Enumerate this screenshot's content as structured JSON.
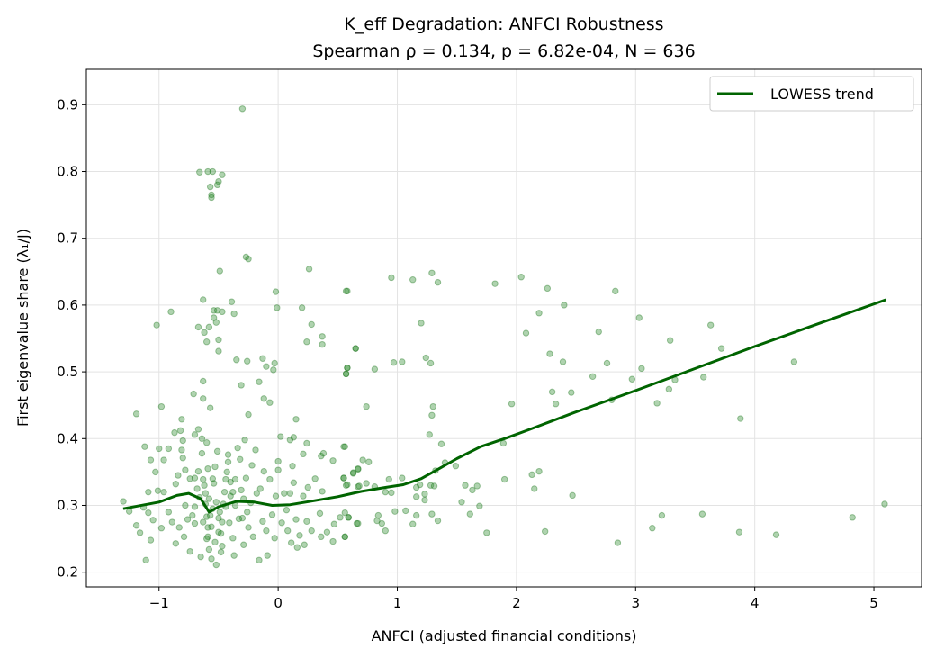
{
  "chart_data": {
    "type": "scatter",
    "title": "K_eff Degradation: ANFCI Robustness",
    "subtitle": "Spearman ρ = 0.134, p = 6.82e-04, N = 636",
    "xlabel": "ANFCI (adjusted financial conditions)",
    "ylabel": "First eigenvalue share (λ₁/J)",
    "xlim": [
      -1.61,
      5.4
    ],
    "ylim": [
      0.178,
      0.953
    ],
    "xticks": [
      -1,
      0,
      1,
      2,
      3,
      4,
      5
    ],
    "xtick_labels": [
      "−1",
      "0",
      "1",
      "2",
      "3",
      "4",
      "5"
    ],
    "yticks": [
      0.2,
      0.3,
      0.4,
      0.5,
      0.6,
      0.7,
      0.8,
      0.9
    ],
    "ytick_labels": [
      "0.2",
      "0.3",
      "0.4",
      "0.5",
      "0.6",
      "0.7",
      "0.8",
      "0.9"
    ],
    "grid": true,
    "legend_placement": "top-right",
    "colors": {
      "points": "#2e8b2e",
      "trend": "#006400"
    },
    "trend": {
      "name": "LOWESS trend",
      "points": [
        [
          -1.3,
          0.295
        ],
        [
          -1.0,
          0.305
        ],
        [
          -0.85,
          0.315
        ],
        [
          -0.75,
          0.318
        ],
        [
          -0.65,
          0.31
        ],
        [
          -0.58,
          0.29
        ],
        [
          -0.5,
          0.298
        ],
        [
          -0.35,
          0.306
        ],
        [
          -0.2,
          0.305
        ],
        [
          -0.05,
          0.3
        ],
        [
          0.1,
          0.301
        ],
        [
          0.3,
          0.307
        ],
        [
          0.5,
          0.313
        ],
        [
          0.7,
          0.321
        ],
        [
          0.9,
          0.327
        ],
        [
          1.05,
          0.331
        ],
        [
          1.2,
          0.34
        ],
        [
          1.35,
          0.355
        ],
        [
          1.5,
          0.37
        ],
        [
          1.7,
          0.388
        ],
        [
          1.9,
          0.4
        ],
        [
          2.1,
          0.413
        ],
        [
          2.5,
          0.44
        ],
        [
          3.0,
          0.472
        ],
        [
          3.5,
          0.505
        ],
        [
          4.0,
          0.538
        ],
        [
          4.5,
          0.57
        ],
        [
          5.1,
          0.608
        ]
      ]
    },
    "points": [
      [
        -0.3,
        0.894
      ],
      [
        -0.66,
        0.799
      ],
      [
        -0.59,
        0.8
      ],
      [
        -0.55,
        0.8
      ],
      [
        -0.47,
        0.795
      ],
      [
        -0.5,
        0.785
      ],
      [
        -0.51,
        0.78
      ],
      [
        -0.57,
        0.777
      ],
      [
        -0.56,
        0.765
      ],
      [
        -0.56,
        0.761
      ],
      [
        -0.27,
        0.672
      ],
      [
        -0.25,
        0.669
      ],
      [
        -0.49,
        0.651
      ],
      [
        0.26,
        0.654
      ],
      [
        -0.63,
        0.608
      ],
      [
        -0.39,
        0.605
      ],
      [
        -0.02,
        0.62
      ],
      [
        -0.01,
        0.596
      ],
      [
        0.58,
        0.621
      ],
      [
        -0.9,
        0.59
      ],
      [
        -0.54,
        0.592
      ],
      [
        -0.51,
        0.592
      ],
      [
        -0.47,
        0.59
      ],
      [
        -0.37,
        0.587
      ],
      [
        0.2,
        0.596
      ],
      [
        -1.02,
        0.57
      ],
      [
        -0.54,
        0.581
      ],
      [
        -0.58,
        0.567
      ],
      [
        -0.52,
        0.574
      ],
      [
        -0.67,
        0.567
      ],
      [
        -0.62,
        0.559
      ],
      [
        0.28,
        0.571
      ],
      [
        -0.6,
        0.545
      ],
      [
        -0.5,
        0.548
      ],
      [
        -0.5,
        0.531
      ],
      [
        0.24,
        0.545
      ],
      [
        0.37,
        0.553
      ],
      [
        0.37,
        0.541
      ],
      [
        0.65,
        0.535
      ],
      [
        -0.35,
        0.518
      ],
      [
        -0.26,
        0.516
      ],
      [
        -0.13,
        0.52
      ],
      [
        -0.1,
        0.508
      ],
      [
        -0.03,
        0.513
      ],
      [
        -0.04,
        0.503
      ],
      [
        0.58,
        0.506
      ],
      [
        0.57,
        0.497
      ],
      [
        -0.63,
        0.486
      ],
      [
        -0.31,
        0.48
      ],
      [
        -0.16,
        0.485
      ],
      [
        -0.71,
        0.467
      ],
      [
        -0.63,
        0.46
      ],
      [
        -0.12,
        0.46
      ],
      [
        -0.07,
        0.454
      ],
      [
        -0.57,
        0.446
      ],
      [
        -0.98,
        0.448
      ],
      [
        -1.19,
        0.437
      ],
      [
        -0.25,
        0.436
      ],
      [
        0.15,
        0.429
      ],
      [
        -0.81,
        0.429
      ],
      [
        -0.87,
        0.409
      ],
      [
        -0.82,
        0.412
      ],
      [
        -0.67,
        0.414
      ],
      [
        -0.7,
        0.406
      ],
      [
        -0.64,
        0.4
      ],
      [
        -0.6,
        0.394
      ],
      [
        -0.8,
        0.397
      ],
      [
        -0.28,
        0.398
      ],
      [
        0.02,
        0.403
      ],
      [
        0.1,
        0.398
      ],
      [
        0.13,
        0.402
      ],
      [
        0.24,
        0.393
      ],
      [
        0.56,
        0.388
      ],
      [
        -1.12,
        0.388
      ],
      [
        -1.0,
        0.385
      ],
      [
        -0.92,
        0.385
      ],
      [
        -1.07,
        0.368
      ],
      [
        -0.96,
        0.368
      ],
      [
        -1.03,
        0.35
      ],
      [
        -0.81,
        0.383
      ],
      [
        -0.8,
        0.371
      ],
      [
        0.21,
        0.377
      ],
      [
        0.36,
        0.374
      ],
      [
        0.38,
        0.378
      ],
      [
        0.46,
        0.367
      ],
      [
        0.0,
        0.366
      ],
      [
        0.12,
        0.359
      ],
      [
        -1.3,
        0.306
      ],
      [
        -1.25,
        0.291
      ],
      [
        -1.19,
        0.27
      ],
      [
        -1.16,
        0.259
      ],
      [
        -1.11,
        0.218
      ],
      [
        -1.07,
        0.248
      ],
      [
        -1.09,
        0.32
      ],
      [
        -1.13,
        0.297
      ],
      [
        -1.09,
        0.289
      ],
      [
        -1.05,
        0.278
      ],
      [
        -1.01,
        0.322
      ],
      [
        -0.98,
        0.266
      ],
      [
        -0.96,
        0.32
      ],
      [
        -0.92,
        0.29
      ],
      [
        -0.89,
        0.275
      ],
      [
        -0.86,
        0.332
      ],
      [
        -0.86,
        0.243
      ],
      [
        -0.83,
        0.267
      ],
      [
        -0.84,
        0.345
      ],
      [
        -0.78,
        0.353
      ],
      [
        -0.79,
        0.253
      ],
      [
        -0.76,
        0.279
      ],
      [
        -0.74,
        0.231
      ],
      [
        -0.7,
        0.273
      ],
      [
        -0.7,
        0.341
      ],
      [
        -0.67,
        0.351
      ],
      [
        -0.64,
        0.378
      ],
      [
        -0.63,
        0.339
      ],
      [
        -0.61,
        0.318
      ],
      [
        -0.61,
        0.302
      ],
      [
        -0.6,
        0.283
      ],
      [
        -0.59,
        0.267
      ],
      [
        -0.59,
        0.253
      ],
      [
        -0.58,
        0.234
      ],
      [
        -0.56,
        0.22
      ],
      [
        -0.52,
        0.211
      ],
      [
        -0.65,
        0.223
      ],
      [
        -0.54,
        0.333
      ],
      [
        -0.53,
        0.358
      ],
      [
        -0.51,
        0.381
      ],
      [
        -0.5,
        0.281
      ],
      [
        -0.48,
        0.258
      ],
      [
        -0.47,
        0.239
      ],
      [
        -0.46,
        0.302
      ],
      [
        -0.44,
        0.339
      ],
      [
        -0.42,
        0.365
      ],
      [
        -0.42,
        0.376
      ],
      [
        -0.41,
        0.274
      ],
      [
        -0.4,
        0.314
      ],
      [
        -0.38,
        0.251
      ],
      [
        -0.37,
        0.225
      ],
      [
        -0.36,
        0.339
      ],
      [
        -0.34,
        0.386
      ],
      [
        -0.32,
        0.369
      ],
      [
        -0.31,
        0.323
      ],
      [
        -0.3,
        0.281
      ],
      [
        -0.29,
        0.241
      ],
      [
        -0.27,
        0.341
      ],
      [
        -0.25,
        0.267
      ],
      [
        -0.23,
        0.304
      ],
      [
        -0.22,
        0.36
      ],
      [
        -0.21,
        0.253
      ],
      [
        -0.19,
        0.383
      ],
      [
        -0.18,
        0.318
      ],
      [
        -0.16,
        0.218
      ],
      [
        -0.15,
        0.325
      ],
      [
        -0.13,
        0.276
      ],
      [
        -0.12,
        0.351
      ],
      [
        -0.1,
        0.262
      ],
      [
        -0.09,
        0.225
      ],
      [
        -0.07,
        0.339
      ],
      [
        -0.05,
        0.286
      ],
      [
        -0.03,
        0.251
      ],
      [
        -0.02,
        0.314
      ],
      [
        0.0,
        0.353
      ],
      [
        0.03,
        0.274
      ],
      [
        0.05,
        0.318
      ],
      [
        0.07,
        0.293
      ],
      [
        0.08,
        0.262
      ],
      [
        0.1,
        0.318
      ],
      [
        0.11,
        0.244
      ],
      [
        0.13,
        0.334
      ],
      [
        0.15,
        0.279
      ],
      [
        0.16,
        0.237
      ],
      [
        0.18,
        0.255
      ],
      [
        0.21,
        0.314
      ],
      [
        0.22,
        0.241
      ],
      [
        0.24,
        0.276
      ],
      [
        0.25,
        0.327
      ],
      [
        0.28,
        0.262
      ],
      [
        0.31,
        0.34
      ],
      [
        0.35,
        0.288
      ],
      [
        0.36,
        0.253
      ],
      [
        0.37,
        0.321
      ],
      [
        0.41,
        0.26
      ],
      [
        0.46,
        0.246
      ],
      [
        0.47,
        0.272
      ],
      [
        0.52,
        0.282
      ],
      [
        0.55,
        0.341
      ],
      [
        0.56,
        0.253
      ],
      [
        0.58,
        0.331
      ],
      [
        0.59,
        0.282
      ],
      [
        0.63,
        0.348
      ],
      [
        0.66,
        0.273
      ],
      [
        0.67,
        0.328
      ],
      [
        0.67,
        0.354
      ],
      [
        -0.58,
        0.31
      ],
      [
        -0.55,
        0.295
      ],
      [
        -0.52,
        0.305
      ],
      [
        -0.49,
        0.29
      ],
      [
        -0.45,
        0.32
      ],
      [
        -0.56,
        0.268
      ],
      [
        -0.53,
        0.245
      ],
      [
        -0.47,
        0.275
      ],
      [
        -0.44,
        0.298
      ],
      [
        -0.62,
        0.33
      ],
      [
        -0.66,
        0.312
      ],
      [
        -0.7,
        0.298
      ],
      [
        -0.4,
        0.335
      ],
      [
        -0.36,
        0.3
      ],
      [
        -0.33,
        0.28
      ],
      [
        -0.57,
        0.285
      ],
      [
        -0.5,
        0.26
      ],
      [
        -0.48,
        0.23
      ],
      [
        -0.6,
        0.25
      ],
      [
        -0.55,
        0.34
      ],
      [
        -0.43,
        0.35
      ],
      [
        -0.38,
        0.32
      ],
      [
        -0.29,
        0.31
      ],
      [
        -0.26,
        0.29
      ],
      [
        -0.63,
        0.275
      ],
      [
        -0.68,
        0.325
      ],
      [
        -0.74,
        0.34
      ],
      [
        -0.78,
        0.3
      ],
      [
        -0.72,
        0.285
      ],
      [
        -0.59,
        0.355
      ],
      [
        0.57,
        0.621
      ],
      [
        0.95,
        0.641
      ],
      [
        1.13,
        0.638
      ],
      [
        1.29,
        0.648
      ],
      [
        1.34,
        0.634
      ],
      [
        1.82,
        0.632
      ],
      [
        2.04,
        0.642
      ],
      [
        2.26,
        0.625
      ],
      [
        2.83,
        0.621
      ],
      [
        2.4,
        0.6
      ],
      [
        2.19,
        0.588
      ],
      [
        1.2,
        0.573
      ],
      [
        0.65,
        0.535
      ],
      [
        0.58,
        0.506
      ],
      [
        0.57,
        0.497
      ],
      [
        0.81,
        0.504
      ],
      [
        0.97,
        0.514
      ],
      [
        1.04,
        0.515
      ],
      [
        1.24,
        0.521
      ],
      [
        1.28,
        0.513
      ],
      [
        2.08,
        0.558
      ],
      [
        2.28,
        0.527
      ],
      [
        2.39,
        0.515
      ],
      [
        2.69,
        0.56
      ],
      [
        2.76,
        0.513
      ],
      [
        3.03,
        0.581
      ],
      [
        3.29,
        0.547
      ],
      [
        3.63,
        0.57
      ],
      [
        3.72,
        0.535
      ],
      [
        4.33,
        0.515
      ],
      [
        3.05,
        0.505
      ],
      [
        2.64,
        0.493
      ],
      [
        2.97,
        0.489
      ],
      [
        3.33,
        0.488
      ],
      [
        3.57,
        0.492
      ],
      [
        3.28,
        0.474
      ],
      [
        3.18,
        0.453
      ],
      [
        2.8,
        0.458
      ],
      [
        2.3,
        0.47
      ],
      [
        2.46,
        0.469
      ],
      [
        2.33,
        0.452
      ],
      [
        1.96,
        0.452
      ],
      [
        3.88,
        0.43
      ],
      [
        0.74,
        0.448
      ],
      [
        1.3,
        0.448
      ],
      [
        1.29,
        0.435
      ],
      [
        1.27,
        0.406
      ],
      [
        1.37,
        0.392
      ],
      [
        0.55,
        0.388
      ],
      [
        1.89,
        0.393
      ],
      [
        0.71,
        0.368
      ],
      [
        0.76,
        0.365
      ],
      [
        0.67,
        0.355
      ],
      [
        0.63,
        0.349
      ],
      [
        1.4,
        0.364
      ],
      [
        1.32,
        0.352
      ],
      [
        1.49,
        0.359
      ],
      [
        0.55,
        0.341
      ],
      [
        0.93,
        0.339
      ],
      [
        1.04,
        0.341
      ],
      [
        2.13,
        0.346
      ],
      [
        2.19,
        0.351
      ],
      [
        2.15,
        0.325
      ],
      [
        2.47,
        0.315
      ],
      [
        1.9,
        0.339
      ],
      [
        0.57,
        0.33
      ],
      [
        0.68,
        0.329
      ],
      [
        0.74,
        0.333
      ],
      [
        0.81,
        0.328
      ],
      [
        0.9,
        0.32
      ],
      [
        0.95,
        0.319
      ],
      [
        1.16,
        0.327
      ],
      [
        1.19,
        0.331
      ],
      [
        1.28,
        0.33
      ],
      [
        1.31,
        0.329
      ],
      [
        1.23,
        0.317
      ],
      [
        1.16,
        0.313
      ],
      [
        1.23,
        0.308
      ],
      [
        1.57,
        0.33
      ],
      [
        1.63,
        0.323
      ],
      [
        1.67,
        0.329
      ],
      [
        1.54,
        0.305
      ],
      [
        1.69,
        0.299
      ],
      [
        0.98,
        0.291
      ],
      [
        1.07,
        0.292
      ],
      [
        1.29,
        0.287
      ],
      [
        1.61,
        0.287
      ],
      [
        0.56,
        0.289
      ],
      [
        0.59,
        0.282
      ],
      [
        0.84,
        0.285
      ],
      [
        0.83,
        0.277
      ],
      [
        0.87,
        0.273
      ],
      [
        0.67,
        0.273
      ],
      [
        0.9,
        0.262
      ],
      [
        1.16,
        0.285
      ],
      [
        1.13,
        0.272
      ],
      [
        1.34,
        0.277
      ],
      [
        0.56,
        0.253
      ],
      [
        1.75,
        0.259
      ],
      [
        2.24,
        0.261
      ],
      [
        2.85,
        0.244
      ],
      [
        3.14,
        0.266
      ],
      [
        3.22,
        0.285
      ],
      [
        3.56,
        0.287
      ],
      [
        3.87,
        0.26
      ],
      [
        4.18,
        0.256
      ],
      [
        4.82,
        0.282
      ],
      [
        5.09,
        0.302
      ]
    ]
  }
}
